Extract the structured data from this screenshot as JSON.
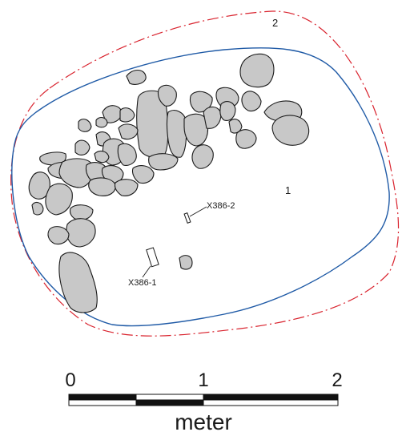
{
  "figure": {
    "zone_labels": {
      "inner": "1",
      "outer": "2"
    },
    "finds": {
      "find_1": "X386-1",
      "find_2": "X386-2"
    },
    "colors": {
      "inner_outline": "#1f5aa6",
      "outer_outline": "#d9232e",
      "stone_fill": "#c8c8c8",
      "stroke": "#1a1a1a"
    }
  },
  "scale_bar": {
    "ticks": [
      "0",
      "1",
      "2"
    ],
    "unit": "meter"
  }
}
